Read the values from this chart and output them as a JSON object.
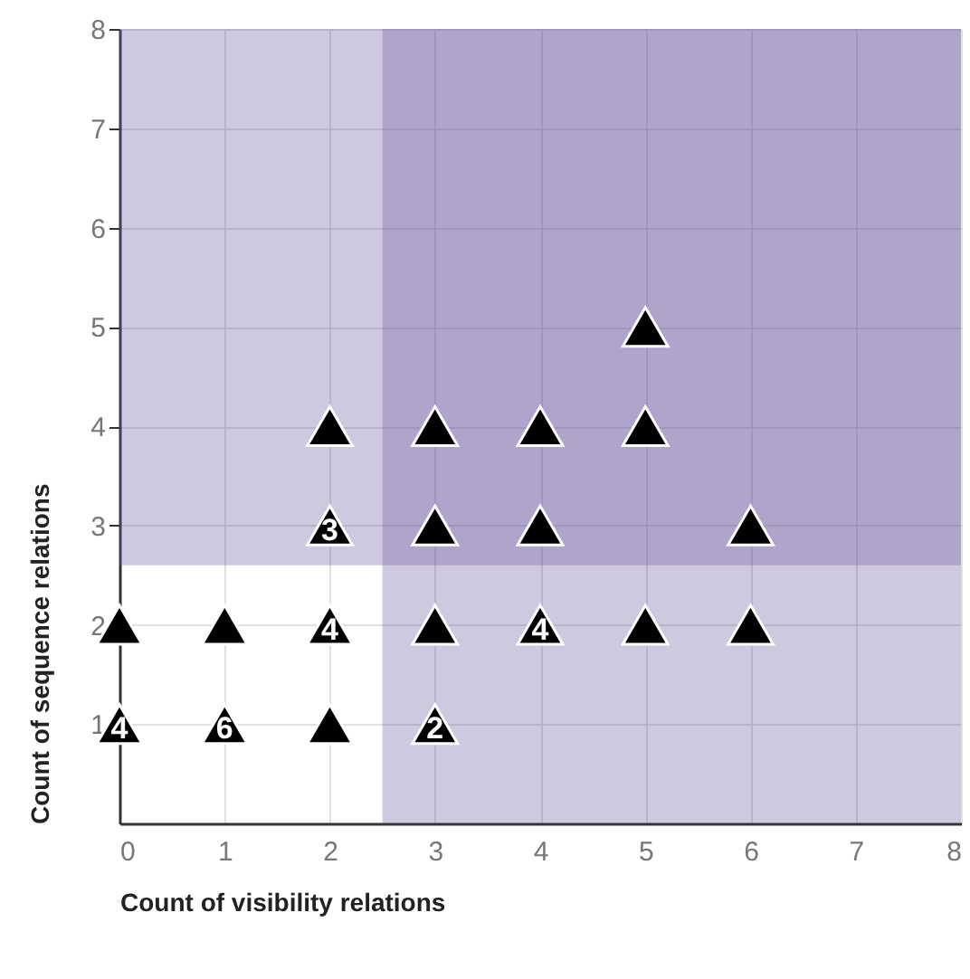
{
  "chart_data": {
    "type": "scatter",
    "xlabel": "Count of visibility relations",
    "ylabel": "Count of sequence relations",
    "x": [
      0,
      1,
      2,
      3,
      4,
      5,
      6,
      0,
      1,
      2,
      3,
      2,
      3,
      4,
      6,
      2,
      3,
      4,
      5,
      5
    ],
    "series": [
      {
        "color": "#000000",
        "values": [
          2,
          2,
          2,
          2,
          2,
          2,
          2,
          1,
          1,
          1,
          1,
          3,
          3,
          3,
          3,
          4,
          4,
          4,
          4,
          5
        ]
      }
    ],
    "annotations": [
      {
        "text": "4",
        "x": 2,
        "y": 2
      },
      {
        "text": "4",
        "x": 4,
        "y": 2
      },
      {
        "text": "4",
        "x": 0,
        "y": 1
      },
      {
        "text": "6",
        "x": 1,
        "y": 1
      },
      {
        "text": "2",
        "x": 3,
        "y": 1
      },
      {
        "text": "3",
        "x": 2,
        "y": 3
      }
    ],
    "marker": "triangle",
    "xlim": [
      0,
      8
    ],
    "xticks": [
      0,
      1,
      2,
      3,
      4,
      5,
      6,
      7,
      8
    ],
    "ylim": [
      0,
      8
    ],
    "yticks": [
      1,
      2,
      3,
      4,
      5,
      6,
      7,
      8
    ],
    "grid": true,
    "bands": [
      {
        "axis": "x",
        "from": 2.5,
        "to": 8,
        "color": "#6d5ba1"
      },
      {
        "axis": "y",
        "from": 2.6,
        "to": 8,
        "color": "#6d5ba1"
      }
    ]
  }
}
